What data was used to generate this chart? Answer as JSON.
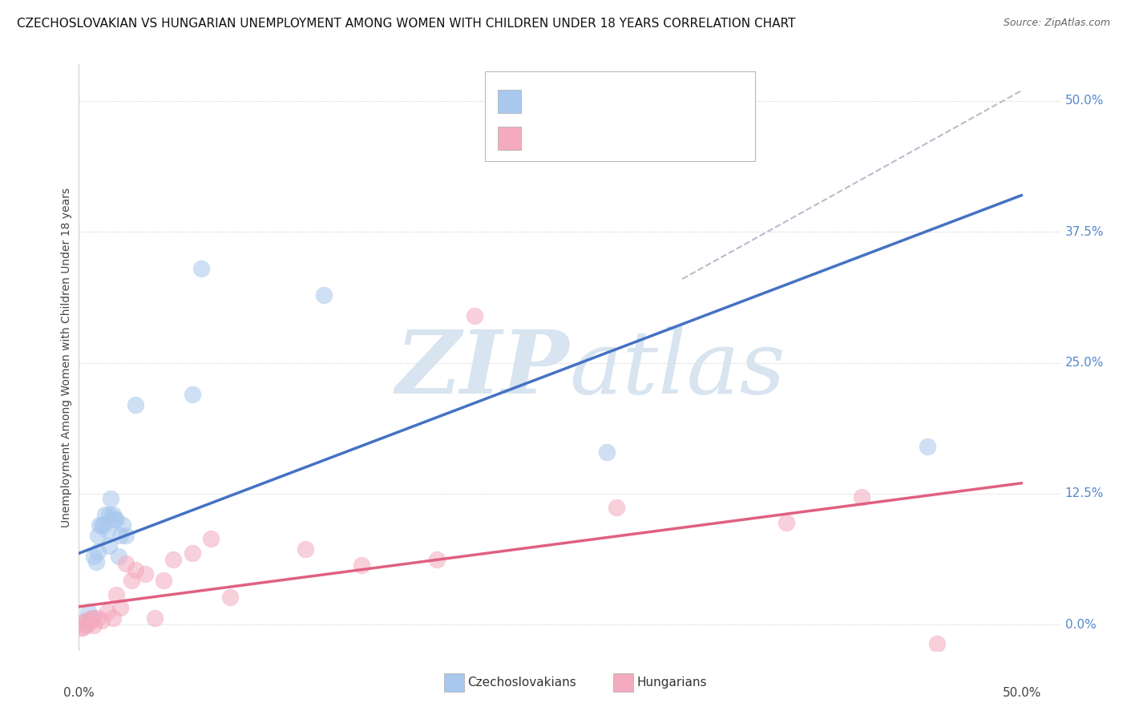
{
  "title": "CZECHOSLOVAKIAN VS HUNGARIAN UNEMPLOYMENT AMONG WOMEN WITH CHILDREN UNDER 18 YEARS CORRELATION CHART",
  "source": "Source: ZipAtlas.com",
  "ylabel": "Unemployment Among Women with Children Under 18 years",
  "blue_scatter_color": "#A8C8EE",
  "pink_scatter_color": "#F4AABF",
  "blue_line_color": "#4472C4",
  "pink_line_color": "#E06080",
  "dashed_line_color": "#BBBBCC",
  "background_color": "#FFFFFF",
  "watermark_color": "#D8E4F0",
  "grid_color": "#CCCCCC",
  "right_label_color": "#5588CC",
  "xlim": [
    0.0,
    0.52
  ],
  "ylim": [
    -0.025,
    0.535
  ],
  "czechs_x": [
    0.003,
    0.005,
    0.007,
    0.008,
    0.009,
    0.01,
    0.01,
    0.011,
    0.012,
    0.013,
    0.014,
    0.015,
    0.016,
    0.016,
    0.017,
    0.018,
    0.019,
    0.02,
    0.021,
    0.022,
    0.023,
    0.025,
    0.03,
    0.06,
    0.065,
    0.13,
    0.28,
    0.45
  ],
  "czechs_y": [
    0.003,
    0.012,
    0.006,
    0.065,
    0.06,
    0.07,
    0.085,
    0.095,
    0.095,
    0.095,
    0.105,
    0.09,
    0.105,
    0.075,
    0.12,
    0.105,
    0.1,
    0.1,
    0.065,
    0.085,
    0.095,
    0.085,
    0.21,
    0.22,
    0.34,
    0.315,
    0.165,
    0.17
  ],
  "hungarians_x": [
    0.001,
    0.002,
    0.003,
    0.004,
    0.004,
    0.005,
    0.006,
    0.007,
    0.008,
    0.01,
    0.012,
    0.015,
    0.018,
    0.02,
    0.022,
    0.025,
    0.028,
    0.03,
    0.035,
    0.04,
    0.045,
    0.05,
    0.06,
    0.07,
    0.08,
    0.12,
    0.15,
    0.19,
    0.21,
    0.285,
    0.375,
    0.415,
    0.455
  ],
  "hungarians_y": [
    -0.003,
    -0.003,
    0.002,
    -0.001,
    0.001,
    0.005,
    0.003,
    0.006,
    -0.001,
    0.006,
    0.004,
    0.012,
    0.006,
    0.028,
    0.016,
    0.058,
    0.042,
    0.052,
    0.048,
    0.006,
    0.042,
    0.062,
    0.068,
    0.082,
    0.026,
    0.072,
    0.057,
    0.062,
    0.295,
    0.112,
    0.097,
    0.122,
    -0.018
  ],
  "czech_trendline_x": [
    0.0,
    0.5
  ],
  "czech_trendline_y": [
    0.068,
    0.41
  ],
  "hungarian_trendline_x": [
    0.0,
    0.5
  ],
  "hungarian_trendline_y": [
    0.017,
    0.135
  ],
  "dashed_trendline_x": [
    0.32,
    0.5
  ],
  "dashed_trendline_y": [
    0.33,
    0.51
  ],
  "y_tick_positions": [
    0.0,
    0.125,
    0.25,
    0.375,
    0.5
  ],
  "y_tick_labels": [
    "0.0%",
    "12.5%",
    "25.0%",
    "37.5%",
    "50.0%"
  ],
  "x_tick_positions": [
    0.0,
    0.5
  ],
  "x_tick_labels": [
    "0.0%",
    "50.0%"
  ],
  "scatter_size": 220,
  "scatter_alpha": 0.55
}
